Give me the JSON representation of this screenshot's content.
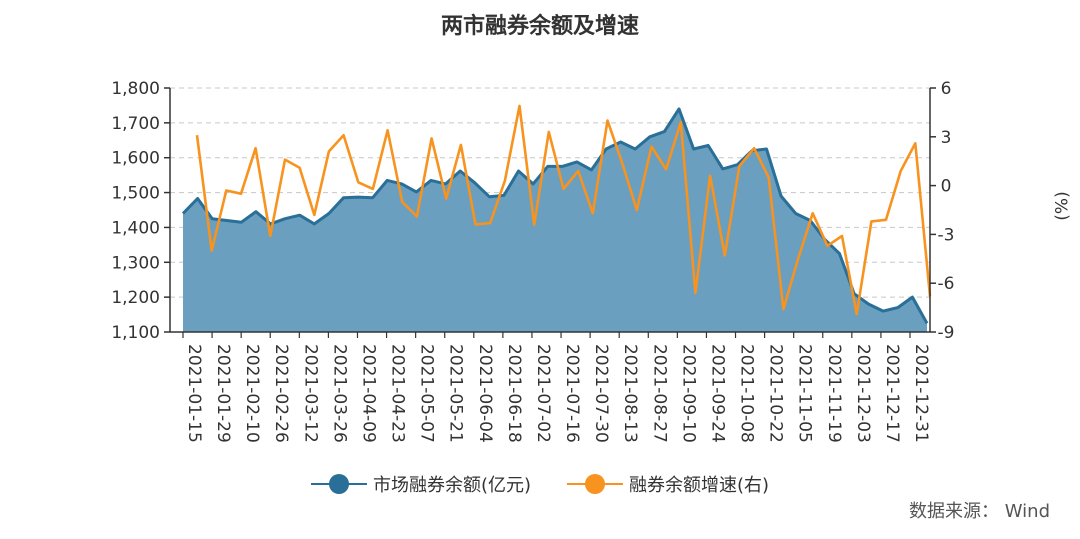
{
  "chart_data": {
    "type": "area+line",
    "title": "两市融券余额及增速",
    "y_left": {
      "ylim": [
        1100,
        1800
      ],
      "ticks": [
        "1,100",
        "1,200",
        "1,300",
        "1,400",
        "1,500",
        "1,600",
        "1,700",
        "1,800"
      ]
    },
    "y_right": {
      "label": "(%)",
      "ylim": [
        -9,
        6
      ],
      "ticks": [
        "-9",
        "-6",
        "-3",
        "0",
        "3",
        "6"
      ]
    },
    "x_tick_labels": [
      "2021-01-15",
      "2021-01-29",
      "2021-02-10",
      "2021-02-26",
      "2021-03-12",
      "2021-03-26",
      "2021-04-09",
      "2021-04-23",
      "2021-05-07",
      "2021-05-21",
      "2021-06-04",
      "2021-06-18",
      "2021-07-02",
      "2021-07-16",
      "2021-07-30",
      "2021-08-13",
      "2021-08-27",
      "2021-09-10",
      "2021-09-24",
      "2021-10-08",
      "2021-10-22",
      "2021-11-05",
      "2021-11-19",
      "2021-12-03",
      "2021-12-17",
      "2021-12-31"
    ],
    "grid": true,
    "series": [
      {
        "name": "市场融券余额(亿元)",
        "axis": "left",
        "color": "#2a6f97",
        "fill": "#6a9fc0",
        "values": [
          1440,
          1483,
          1425,
          1420,
          1415,
          1445,
          1410,
          1425,
          1435,
          1410,
          1440,
          1485,
          1487,
          1485,
          1535,
          1525,
          1502,
          1535,
          1525,
          1562,
          1528,
          1488,
          1492,
          1562,
          1525,
          1575,
          1575,
          1588,
          1565,
          1625,
          1645,
          1625,
          1660,
          1675,
          1740,
          1625,
          1635,
          1568,
          1580,
          1620,
          1625,
          1490,
          1440,
          1420,
          1365,
          1325,
          1210,
          1180,
          1160,
          1170,
          1200,
          1125
        ]
      },
      {
        "name": "融券余额增速(右)",
        "axis": "right",
        "color": "#f7931e",
        "values": [
          3.1,
          -4.0,
          -0.3,
          -0.5,
          2.3,
          -3.1,
          1.6,
          1.1,
          -1.8,
          2.1,
          3.1,
          0.2,
          -0.2,
          3.4,
          -1.0,
          -1.9,
          2.9,
          -0.8,
          2.5,
          -2.4,
          -2.3,
          0.3,
          4.9,
          -2.4,
          3.3,
          -0.2,
          0.9,
          -1.7,
          4.0,
          1.4,
          -1.5,
          2.4,
          1.0,
          3.9,
          -6.6,
          0.6,
          -4.3,
          1.2,
          2.3,
          0.5,
          -7.6,
          -4.5,
          -1.7,
          -3.7,
          -3.1,
          -7.9,
          -2.2,
          -2.1,
          0.9,
          2.6,
          -6.8
        ]
      }
    ]
  },
  "legend": [
    {
      "label": "市场融券余额(亿元)",
      "line_color": "#2a6f97",
      "dot_color": "#2a6f97"
    },
    {
      "label": "融券余额增速(右)",
      "line_color": "#f7931e",
      "dot_color": "#f7931e"
    }
  ],
  "source": "数据来源： Wind"
}
